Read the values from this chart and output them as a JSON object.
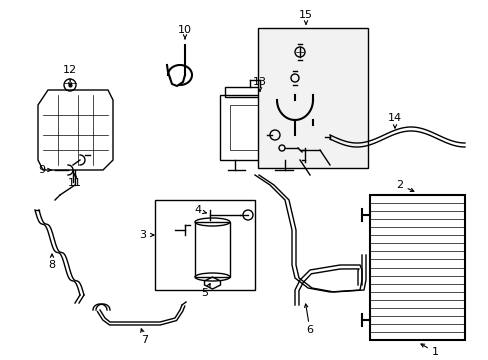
{
  "bg_color": "#ffffff",
  "line_color": "#000000",
  "parts": {
    "layout": "technical diagram with white background and black line drawings"
  }
}
